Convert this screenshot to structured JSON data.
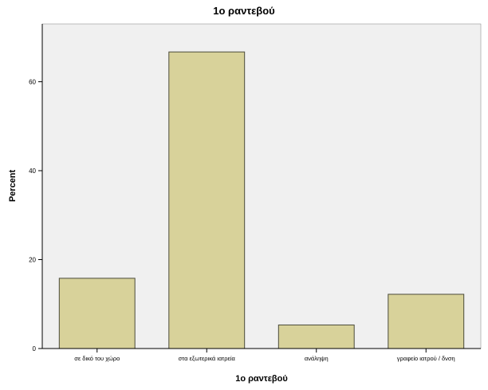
{
  "chart_data": {
    "type": "bar",
    "title": "1ο ραντεβού",
    "xlabel": "1ο ραντεβού",
    "ylabel": "Percent",
    "categories": [
      "σε δικό του χώρο",
      "στα εξωτερικά ιατρεία",
      "ανάληψη",
      "γραφείο ιατρού / δνση"
    ],
    "values": [
      15.8,
      66.7,
      5.3,
      12.2
    ],
    "ylim": [
      0,
      73
    ],
    "yticks": [
      0,
      20,
      40,
      60
    ],
    "grid": false,
    "colors": {
      "plot_background": "#f0f0f0",
      "bar_fill": "#d8d29a",
      "bar_stroke": "#4a4a3a",
      "frame": "#808080"
    }
  }
}
